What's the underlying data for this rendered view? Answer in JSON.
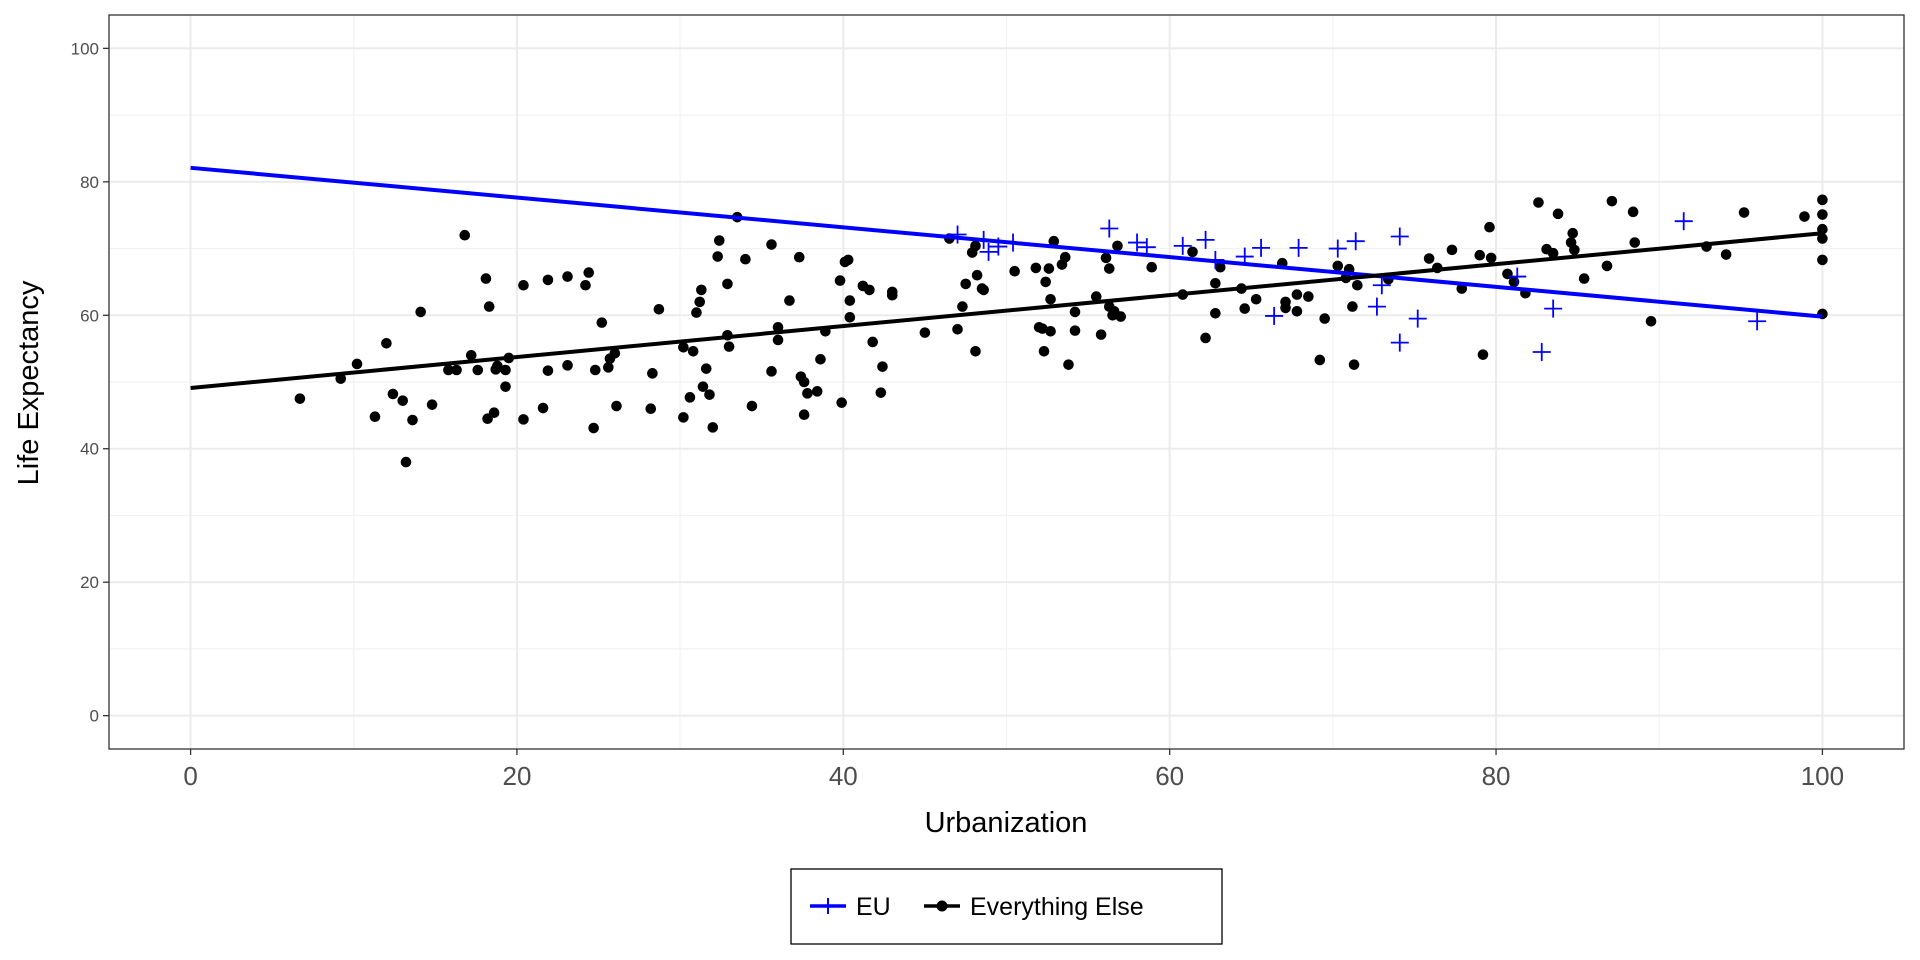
{
  "chart_data": {
    "type": "scatter",
    "title": "",
    "xlabel": "Urbanization",
    "ylabel": "Life Expectancy",
    "xlim": [
      -5,
      105
    ],
    "ylim": [
      -5,
      105
    ],
    "xticks": [
      "0",
      "20",
      "40",
      "60",
      "80",
      "100"
    ],
    "xtick_values": [
      0,
      20,
      40,
      60,
      80,
      100
    ],
    "yticks": [
      "0",
      "20",
      "40",
      "60",
      "80",
      "100"
    ],
    "ytick_values": [
      0,
      20,
      40,
      60,
      80,
      100
    ],
    "grid": true,
    "legend_position": "bottom",
    "series": [
      {
        "name": "EU",
        "marker": "plus",
        "color": "#0000ff",
        "fit_line": [
          [
            0,
            82.1
          ],
          [
            100,
            59.8
          ]
        ],
        "points": [
          [
            47,
            72.1
          ],
          [
            48.6,
            71.3
          ],
          [
            48.9,
            69.5
          ],
          [
            49.5,
            70.3
          ],
          [
            50.4,
            70.9
          ],
          [
            56.3,
            73
          ],
          [
            58,
            70.9
          ],
          [
            58.6,
            70.2
          ],
          [
            60.8,
            70.4
          ],
          [
            62.2,
            71.3
          ],
          [
            62.8,
            68.3
          ],
          [
            64.6,
            68.8
          ],
          [
            65.6,
            70.1
          ],
          [
            66.4,
            59.9
          ],
          [
            67.9,
            70.1
          ],
          [
            70.3,
            70
          ],
          [
            71.4,
            71.1
          ],
          [
            72.7,
            61.3
          ],
          [
            73,
            64.5
          ],
          [
            74.1,
            71.8
          ],
          [
            74.1,
            55.9
          ],
          [
            75.2,
            59.5
          ],
          [
            81.3,
            65.8
          ],
          [
            82.8,
            54.5
          ],
          [
            83.5,
            61
          ],
          [
            91.5,
            74.1
          ],
          [
            96,
            59.1
          ]
        ]
      },
      {
        "name": "Everything Else",
        "marker": "circle",
        "color": "#000000",
        "fit_line": [
          [
            0,
            49.1
          ],
          [
            100,
            72.3
          ]
        ],
        "points": [
          [
            6.7,
            47.5
          ],
          [
            9.2,
            50.5
          ],
          [
            10.2,
            52.7
          ],
          [
            11.3,
            44.8
          ],
          [
            12,
            55.8
          ],
          [
            12.4,
            48.2
          ],
          [
            13,
            47.2
          ],
          [
            13.2,
            38
          ],
          [
            13.6,
            44.3
          ],
          [
            14.1,
            60.5
          ],
          [
            14.8,
            46.6
          ],
          [
            15.8,
            51.8
          ],
          [
            16.3,
            51.8
          ],
          [
            16.8,
            72
          ],
          [
            17.2,
            54
          ],
          [
            17.6,
            51.8
          ],
          [
            18.1,
            65.5
          ],
          [
            18.2,
            44.5
          ],
          [
            18.3,
            61.3
          ],
          [
            18.6,
            45.4
          ],
          [
            18.7,
            51.9
          ],
          [
            18.8,
            52.4
          ],
          [
            19.3,
            51.8
          ],
          [
            19.3,
            49.3
          ],
          [
            19.5,
            53.6
          ],
          [
            20.4,
            44.4
          ],
          [
            20.4,
            64.5
          ],
          [
            21.6,
            46.1
          ],
          [
            21.9,
            51.7
          ],
          [
            21.9,
            65.3
          ],
          [
            23.1,
            52.5
          ],
          [
            23.1,
            65.8
          ],
          [
            24.2,
            64.5
          ],
          [
            24.4,
            66.4
          ],
          [
            24.7,
            43.1
          ],
          [
            24.8,
            51.8
          ],
          [
            25.2,
            58.9
          ],
          [
            25.6,
            52.2
          ],
          [
            25.7,
            53.5
          ],
          [
            26,
            54.3
          ],
          [
            26.1,
            46.4
          ],
          [
            28.2,
            46
          ],
          [
            28.3,
            51.3
          ],
          [
            28.7,
            60.9
          ],
          [
            30.2,
            44.7
          ],
          [
            30.2,
            55.2
          ],
          [
            30.6,
            47.7
          ],
          [
            30.8,
            54.6
          ],
          [
            31,
            60.4
          ],
          [
            31.2,
            62
          ],
          [
            31.3,
            63.8
          ],
          [
            31.4,
            49.3
          ],
          [
            31.6,
            52
          ],
          [
            31.8,
            48.1
          ],
          [
            32,
            43.2
          ],
          [
            32.3,
            68.8
          ],
          [
            32.4,
            71.2
          ],
          [
            32.9,
            64.7
          ],
          [
            32.9,
            57
          ],
          [
            33,
            55.3
          ],
          [
            33.5,
            74.7
          ],
          [
            34,
            68.4
          ],
          [
            34.4,
            46.4
          ],
          [
            35.6,
            70.6
          ],
          [
            35.6,
            51.6
          ],
          [
            36,
            58.2
          ],
          [
            36,
            56.3
          ],
          [
            36.7,
            62.2
          ],
          [
            37.3,
            68.7
          ],
          [
            37.4,
            50.8
          ],
          [
            37.6,
            45.1
          ],
          [
            37.6,
            50
          ],
          [
            37.8,
            48.3
          ],
          [
            38.4,
            48.6
          ],
          [
            38.6,
            53.4
          ],
          [
            38.9,
            57.6
          ],
          [
            39.8,
            65.2
          ],
          [
            39.9,
            46.9
          ],
          [
            40.1,
            68
          ],
          [
            40.3,
            68.3
          ],
          [
            40.4,
            59.7
          ],
          [
            40.4,
            62.2
          ],
          [
            41.2,
            64.4
          ],
          [
            41.6,
            63.8
          ],
          [
            41.8,
            56
          ],
          [
            42.3,
            48.4
          ],
          [
            42.4,
            52.3
          ],
          [
            43,
            63.5
          ],
          [
            43,
            63
          ],
          [
            45,
            57.4
          ],
          [
            46.5,
            71.5
          ],
          [
            47,
            57.9
          ],
          [
            47.3,
            61.3
          ],
          [
            47.5,
            64.7
          ],
          [
            47.9,
            69.4
          ],
          [
            48.1,
            54.6
          ],
          [
            48.1,
            70.4
          ],
          [
            48.2,
            66
          ],
          [
            48.5,
            64
          ],
          [
            48.6,
            63.8
          ],
          [
            50.5,
            66.6
          ],
          [
            51.8,
            67.1
          ],
          [
            52,
            58.2
          ],
          [
            52.2,
            58
          ],
          [
            52.3,
            54.6
          ],
          [
            52.4,
            65
          ],
          [
            52.6,
            67
          ],
          [
            52.7,
            62.4
          ],
          [
            52.7,
            57.6
          ],
          [
            52.9,
            71.1
          ],
          [
            53.4,
            67.6
          ],
          [
            53.6,
            68.7
          ],
          [
            53.8,
            52.6
          ],
          [
            54.2,
            57.7
          ],
          [
            54.2,
            60.5
          ],
          [
            55.5,
            62.8
          ],
          [
            55.8,
            57.1
          ],
          [
            56.1,
            68.6
          ],
          [
            56.3,
            61.3
          ],
          [
            56.3,
            67
          ],
          [
            56.5,
            60
          ],
          [
            56.6,
            60.6
          ],
          [
            56.8,
            70.4
          ],
          [
            57,
            59.8
          ],
          [
            58.9,
            67.2
          ],
          [
            60.8,
            63.1
          ],
          [
            61.4,
            69.5
          ],
          [
            62.2,
            56.6
          ],
          [
            62.8,
            60.3
          ],
          [
            62.8,
            64.8
          ],
          [
            63.1,
            67.2
          ],
          [
            64.4,
            64
          ],
          [
            64.6,
            61
          ],
          [
            65.3,
            62.4
          ],
          [
            66.9,
            67.8
          ],
          [
            67.1,
            61.1
          ],
          [
            67.1,
            62
          ],
          [
            67.8,
            60.6
          ],
          [
            67.8,
            63.1
          ],
          [
            68.5,
            62.8
          ],
          [
            69.2,
            53.3
          ],
          [
            69.5,
            59.5
          ],
          [
            70.3,
            67.4
          ],
          [
            70.8,
            65.6
          ],
          [
            71,
            66.9
          ],
          [
            71.2,
            61.3
          ],
          [
            71.3,
            52.6
          ],
          [
            71.5,
            64.5
          ],
          [
            73.4,
            65.4
          ],
          [
            75.9,
            68.5
          ],
          [
            76.4,
            67.1
          ],
          [
            77.3,
            69.8
          ],
          [
            77.9,
            64
          ],
          [
            79,
            69
          ],
          [
            79.2,
            54.1
          ],
          [
            79.6,
            73.2
          ],
          [
            79.7,
            68.6
          ],
          [
            80.7,
            66.2
          ],
          [
            81.1,
            65
          ],
          [
            81.8,
            63.3
          ],
          [
            82.6,
            76.9
          ],
          [
            83.1,
            69.9
          ],
          [
            83.5,
            69.3
          ],
          [
            83.8,
            75.2
          ],
          [
            84.6,
            70.9
          ],
          [
            84.7,
            72.3
          ],
          [
            84.8,
            69.8
          ],
          [
            85.4,
            65.5
          ],
          [
            86.8,
            67.4
          ],
          [
            87.1,
            77.1
          ],
          [
            88.4,
            75.5
          ],
          [
            88.5,
            70.9
          ],
          [
            89.5,
            59.1
          ],
          [
            92.9,
            70.3
          ],
          [
            94.1,
            69.1
          ],
          [
            95.2,
            75.4
          ],
          [
            98.9,
            74.8
          ],
          [
            100,
            77.3
          ],
          [
            100,
            75.1
          ],
          [
            100,
            72.9
          ],
          [
            100,
            71.5
          ],
          [
            100,
            68.3
          ],
          [
            100,
            60.2
          ]
        ]
      }
    ]
  }
}
